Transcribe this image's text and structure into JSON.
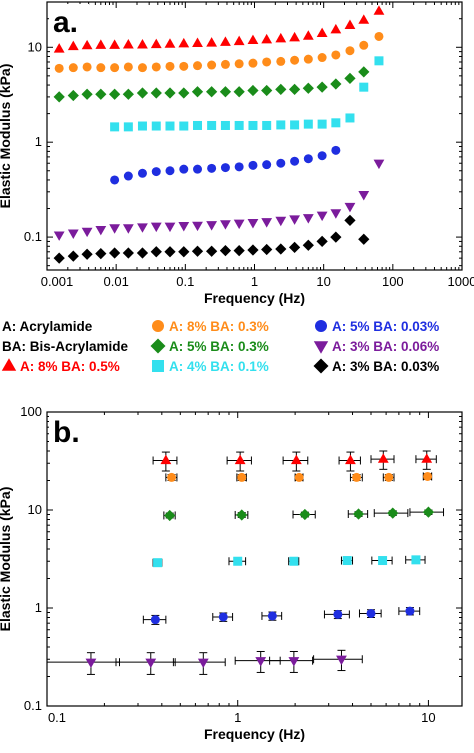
{
  "chart_data": [
    {
      "panel_label": "a.",
      "type": "scatter",
      "xscale": "log",
      "yscale": "log",
      "xlabel": "Frequency (Hz)",
      "ylabel": "Elastic Modulus (kPa)",
      "xlim": [
        0.001,
        1000
      ],
      "ylim": [
        0.045,
        30
      ],
      "x_ticks": [
        "0.001",
        "0.01",
        "0.1",
        "1",
        "10",
        "100",
        "1000"
      ],
      "y_ticks": [
        "0.1",
        "1",
        "10"
      ],
      "series": [
        {
          "key": "s1",
          "marker": "triangle-up",
          "color": "#ff0000",
          "x": [
            0.0015,
            0.0024,
            0.0038,
            0.006,
            0.0095,
            0.015,
            0.024,
            0.038,
            0.06,
            0.095,
            0.15,
            0.24,
            0.38,
            0.6,
            0.95,
            1.5,
            2.4,
            3.8,
            6,
            9.5,
            15,
            24,
            38,
            63
          ],
          "y": [
            9.6,
            10.2,
            10.4,
            10.5,
            10.5,
            10.6,
            10.6,
            10.7,
            10.8,
            10.9,
            11,
            11.1,
            11.3,
            11.5,
            11.8,
            12,
            12.3,
            12.6,
            13.1,
            14,
            15.3,
            17,
            19.3,
            24
          ]
        },
        {
          "key": "s2",
          "marker": "circle",
          "color": "#ff8c1a",
          "x": [
            0.0015,
            0.0024,
            0.0038,
            0.006,
            0.0095,
            0.015,
            0.024,
            0.038,
            0.06,
            0.095,
            0.15,
            0.24,
            0.38,
            0.6,
            0.95,
            1.5,
            2.4,
            3.8,
            6,
            9.5,
            15,
            24,
            38,
            63
          ],
          "y": [
            6,
            6.1,
            6.2,
            6.1,
            6.1,
            6.2,
            6.1,
            6.2,
            6.3,
            6.3,
            6.4,
            6.5,
            6.6,
            6.7,
            6.8,
            7,
            7.1,
            7.3,
            7.5,
            7.8,
            8.3,
            9.2,
            10.5,
            13
          ]
        },
        {
          "key": "s3",
          "marker": "diamond",
          "color": "#1a8c1a",
          "x": [
            0.0015,
            0.0024,
            0.0038,
            0.006,
            0.0095,
            0.015,
            0.024,
            0.038,
            0.06,
            0.095,
            0.15,
            0.24,
            0.38,
            0.6,
            0.95,
            1.5,
            2.4,
            3.8,
            6,
            9.5,
            15,
            24,
            38
          ],
          "y": [
            3,
            3.1,
            3.2,
            3.2,
            3.2,
            3.2,
            3.3,
            3.3,
            3.3,
            3.3,
            3.4,
            3.4,
            3.4,
            3.4,
            3.5,
            3.5,
            3.6,
            3.6,
            3.7,
            3.8,
            4.1,
            4.7,
            5.5
          ]
        },
        {
          "key": "s4",
          "marker": "square",
          "color": "#33e0ee",
          "x": [
            0.0095,
            0.015,
            0.024,
            0.038,
            0.06,
            0.095,
            0.15,
            0.24,
            0.38,
            0.6,
            0.95,
            1.5,
            2.4,
            3.8,
            6,
            9.5,
            15,
            24,
            38,
            63
          ],
          "y": [
            1.45,
            1.45,
            1.48,
            1.48,
            1.48,
            1.48,
            1.5,
            1.5,
            1.5,
            1.5,
            1.5,
            1.5,
            1.52,
            1.52,
            1.55,
            1.55,
            1.6,
            1.8,
            3.8,
            7.2
          ]
        },
        {
          "key": "s5",
          "marker": "circle",
          "color": "#1f2ee0",
          "x": [
            0.0095,
            0.015,
            0.024,
            0.038,
            0.06,
            0.095,
            0.15,
            0.24,
            0.38,
            0.6,
            0.95,
            1.5,
            2.4,
            3.8,
            6,
            9.5,
            15
          ],
          "y": [
            0.4,
            0.44,
            0.47,
            0.49,
            0.5,
            0.52,
            0.52,
            0.53,
            0.54,
            0.55,
            0.57,
            0.58,
            0.6,
            0.63,
            0.67,
            0.72,
            0.82
          ]
        },
        {
          "key": "s6",
          "marker": "triangle-down",
          "color": "#7b1c9c",
          "x": [
            0.0015,
            0.0024,
            0.0038,
            0.006,
            0.0095,
            0.015,
            0.024,
            0.038,
            0.06,
            0.095,
            0.15,
            0.24,
            0.38,
            0.6,
            0.95,
            1.5,
            2.4,
            3.8,
            6,
            9.5,
            15,
            24,
            38,
            63
          ],
          "y": [
            0.105,
            0.11,
            0.115,
            0.12,
            0.125,
            0.125,
            0.128,
            0.13,
            0.13,
            0.132,
            0.133,
            0.135,
            0.138,
            0.14,
            0.142,
            0.145,
            0.15,
            0.155,
            0.16,
            0.17,
            0.18,
            0.21,
            0.28,
            0.6
          ]
        },
        {
          "key": "s7",
          "marker": "diamond",
          "color": "#000000",
          "x": [
            0.0015,
            0.0024,
            0.0038,
            0.006,
            0.0095,
            0.015,
            0.024,
            0.038,
            0.06,
            0.095,
            0.15,
            0.24,
            0.38,
            0.6,
            0.95,
            1.5,
            2.4,
            3.8,
            6,
            9.5,
            15,
            24,
            38
          ],
          "y": [
            0.06,
            0.063,
            0.066,
            0.067,
            0.068,
            0.068,
            0.068,
            0.07,
            0.07,
            0.07,
            0.071,
            0.071,
            0.072,
            0.072,
            0.073,
            0.074,
            0.075,
            0.078,
            0.082,
            0.09,
            0.1,
            0.15,
            0.095
          ]
        }
      ]
    },
    {
      "panel_label": "b.",
      "type": "scatter",
      "xscale": "log",
      "yscale": "log",
      "xlabel": "Frequency (Hz)",
      "ylabel": "Elastic Modulus (kPa)",
      "xlim": [
        0.1,
        15
      ],
      "ylim": [
        0.1,
        100
      ],
      "x_ticks": [
        "0.1",
        "1",
        "10"
      ],
      "y_ticks": [
        "0.1",
        "1",
        "10",
        "100"
      ],
      "series": [
        {
          "key": "s1",
          "marker": "triangle-up",
          "color": "#ff0000",
          "x": [
            0.42,
            1.03,
            2.03,
            3.9,
            5.8,
            9.8
          ],
          "y": [
            32,
            32,
            32,
            32,
            33,
            33
          ],
          "xerr": [
            0.06,
            0.15,
            0.3,
            0.5,
            0.8,
            1.2
          ],
          "yerr": [
            7,
            7,
            7,
            7,
            7,
            7
          ]
        },
        {
          "key": "s2",
          "marker": "circle",
          "color": "#ff8c1a",
          "x": [
            0.45,
            1.05,
            2.1,
            4.2,
            6.2,
            9.9
          ],
          "y": [
            21.5,
            21.5,
            21.5,
            21.5,
            21.5,
            22
          ],
          "xerr": [
            0.03,
            0.06,
            0.1,
            0.3,
            0.4,
            0.5
          ],
          "yerr": [
            1.5,
            1.5,
            1.5,
            1.5,
            1.5,
            1.5
          ]
        },
        {
          "key": "s3",
          "marker": "diamond",
          "color": "#1a8c1a",
          "x": [
            0.44,
            1.05,
            2.25,
            4.3,
            6.5,
            10
          ],
          "y": [
            8.8,
            8.9,
            9,
            9.1,
            9.3,
            9.5
          ],
          "xerr": [
            0.03,
            0.08,
            0.3,
            0.5,
            1.3,
            2
          ],
          "yerr": [
            0.5,
            0.5,
            0.5,
            0.5,
            0.5,
            0.5
          ]
        },
        {
          "key": "s4",
          "marker": "square",
          "color": "#33e0ee",
          "x": [
            0.38,
            1.0,
            1.97,
            3.75,
            5.75,
            8.6
          ],
          "y": [
            2.9,
            3.0,
            3.0,
            3.05,
            3.05,
            3.1
          ],
          "xerr": [
            0.02,
            0.1,
            0.12,
            0.25,
            0.7,
            1.0
          ],
          "yerr": [
            0.2,
            0.2,
            0.2,
            0.2,
            0.2,
            0.2
          ]
        },
        {
          "key": "s5",
          "marker": "circle",
          "color": "#1f2ee0",
          "x": [
            0.37,
            0.84,
            1.52,
            3.35,
            5.0,
            8.0
          ],
          "y": [
            0.76,
            0.81,
            0.83,
            0.86,
            0.88,
            0.93
          ],
          "xerr": [
            0.05,
            0.1,
            0.18,
            0.5,
            0.65,
            1.0
          ],
          "yerr": [
            0.08,
            0.08,
            0.08,
            0.08,
            0.08,
            0.08
          ]
        },
        {
          "key": "s6",
          "marker": "triangle-down",
          "color": "#7b1c9c",
          "x": [
            0.17,
            0.35,
            0.66,
            1.32,
            1.97,
            3.5
          ],
          "y": [
            0.28,
            0.28,
            0.28,
            0.29,
            0.29,
            0.3
          ],
          "xerr": [
            0.07,
            0.12,
            0.2,
            0.35,
            0.5,
            1.0
          ],
          "yerr": [
            0.07,
            0.07,
            0.07,
            0.07,
            0.07,
            0.07
          ]
        }
      ]
    }
  ],
  "legend": [
    {
      "text": "A: Acrylamide",
      "color": "#000000"
    },
    {
      "text": "BA: Bis-Acrylamide",
      "color": "#000000"
    },
    {
      "key": "s1",
      "marker": "triangle-up",
      "color": "#ff0000",
      "text": "A: 8%  BA: 0.5%"
    },
    {
      "key": "s2",
      "marker": "circle",
      "color": "#ff8c1a",
      "text": "A: 8%  BA: 0.3%"
    },
    {
      "key": "s3",
      "marker": "diamond",
      "color": "#1a8c1a",
      "text": "A: 5%  BA: 0.3%"
    },
    {
      "key": "s4",
      "marker": "square",
      "color": "#33e0ee",
      "text": "A: 4%  BA: 0.1%"
    },
    {
      "key": "s5",
      "marker": "circle",
      "color": "#1f2ee0",
      "text": "A: 5%  BA: 0.03%"
    },
    {
      "key": "s6",
      "marker": "triangle-down",
      "color": "#7b1c9c",
      "text": "A: 3%  BA: 0.06%"
    },
    {
      "key": "s7",
      "marker": "diamond",
      "color": "#000000",
      "text": "A: 3%  BA: 0.03%"
    }
  ]
}
